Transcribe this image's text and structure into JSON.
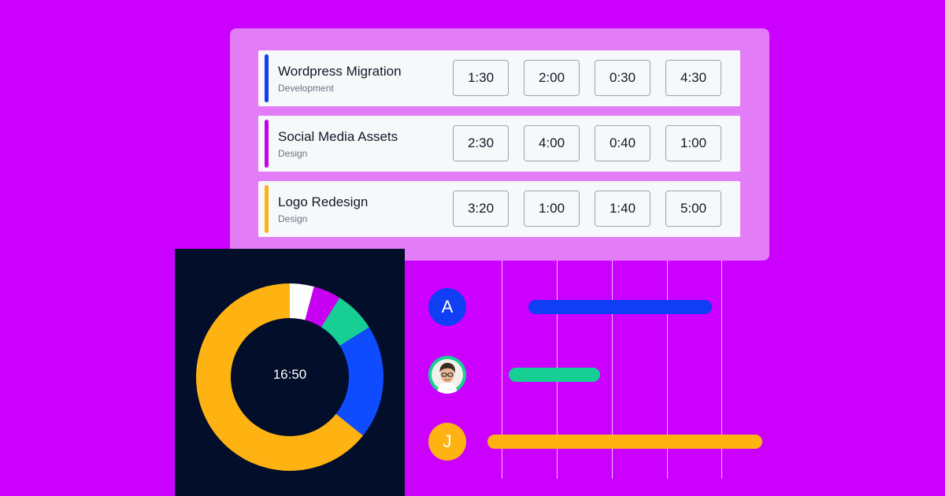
{
  "tasks": [
    {
      "title": "Wordpress Migration",
      "category": "Development",
      "accent_color": "#0f3ef5",
      "times": [
        "1:30",
        "2:00",
        "0:30",
        "4:30"
      ]
    },
    {
      "title": "Social Media Assets",
      "category": "Design",
      "accent_color": "#c800f2",
      "times": [
        "2:30",
        "4:00",
        "0:40",
        "1:00"
      ]
    },
    {
      "title": "Logo Redesign",
      "category": "Design",
      "accent_color": "#ffb313",
      "times": [
        "3:20",
        "1:00",
        "1:40",
        "5:00"
      ]
    }
  ],
  "donut": {
    "center_label": "16:50",
    "segments": [
      {
        "color": "#ffffff",
        "value": 0.7
      },
      {
        "color": "#c800f2",
        "value": 0.8
      },
      {
        "color": "#17cf95",
        "value": 1.2
      },
      {
        "color": "#0f4cff",
        "value": 3.3
      },
      {
        "color": "#ffb313",
        "value": 10.8
      }
    ]
  },
  "people": [
    {
      "initial": "A",
      "avatar_color": "#0f3ef5",
      "bar_color": "#0f3ef5"
    },
    {
      "initial": "",
      "avatar_type": "photo-portrait",
      "avatar_color": "#17cf95",
      "bar_color": "#17cf95"
    },
    {
      "initial": "J",
      "avatar_color": "#ffb313",
      "bar_color": "#ffb313"
    }
  ],
  "colors": {
    "background": "#cc00ff",
    "card": "#e37cf7",
    "panel": "#020e2a"
  }
}
